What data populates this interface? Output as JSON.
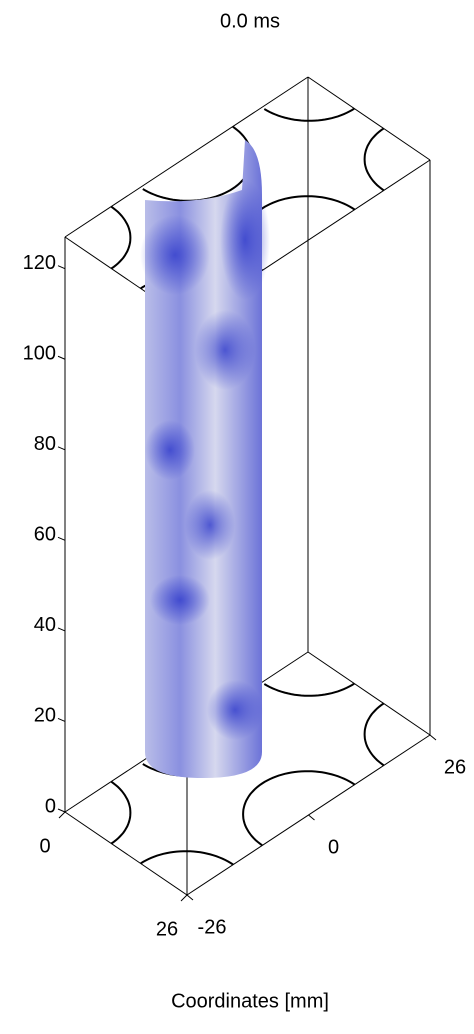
{
  "chart_data": {
    "type": "surface3d",
    "title": "0.0 ms",
    "axis_label": "Coordinates [mm]",
    "xlim": [
      0,
      26
    ],
    "xticks": [
      0,
      26
    ],
    "ylim": [
      -26,
      26
    ],
    "yticks": [
      -26,
      0,
      26
    ],
    "zlim": [
      0,
      127
    ],
    "zticks": [
      0,
      20,
      40,
      60,
      80,
      100,
      120
    ]
  }
}
